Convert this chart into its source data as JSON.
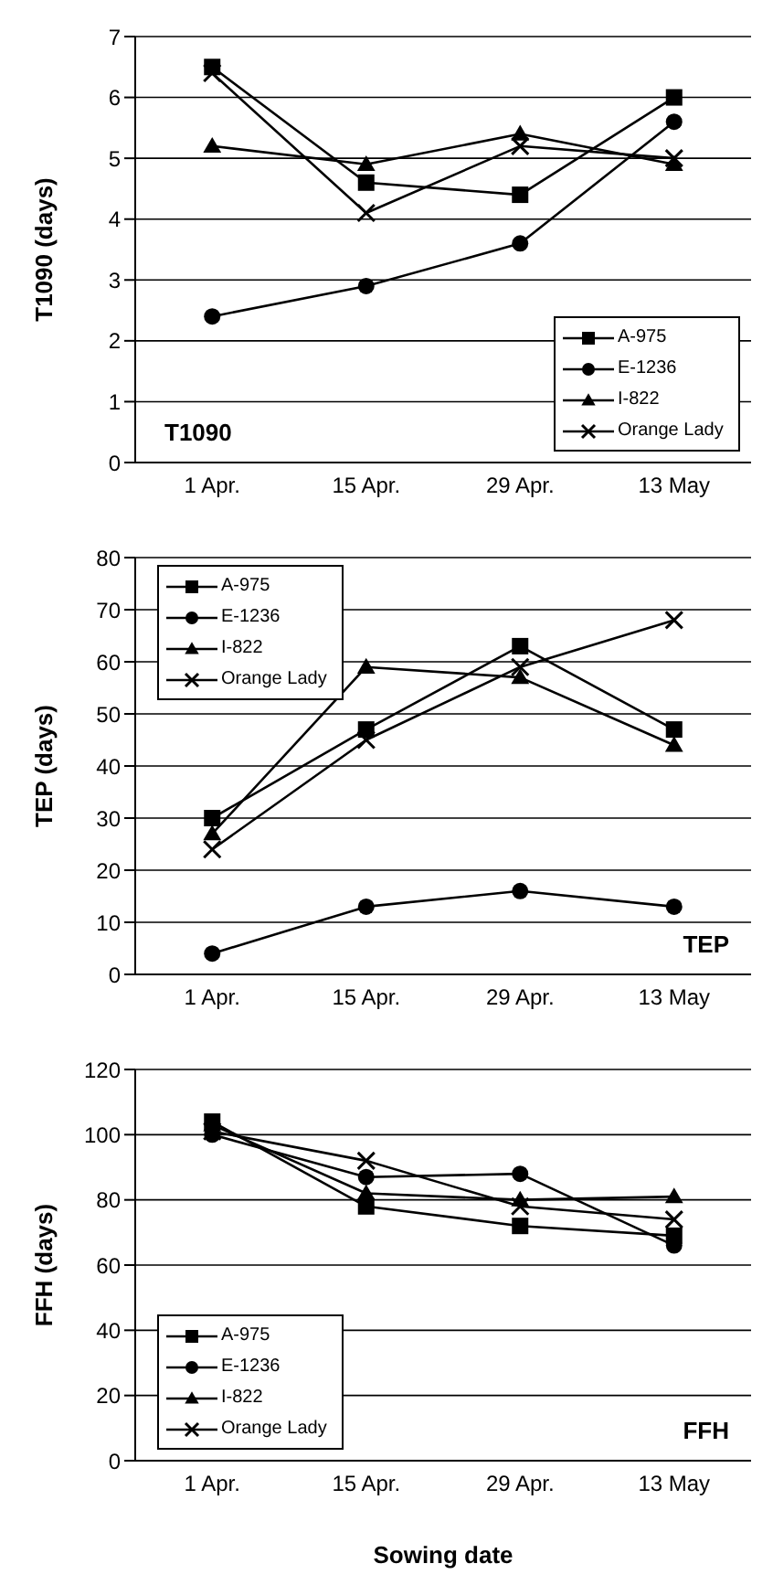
{
  "chart_data": [
    {
      "type": "line",
      "ylabel": "T1090 (days)",
      "categories": [
        "1 Apr.",
        "15 Apr.",
        "29 Apr.",
        "13 May"
      ],
      "ylim": [
        0,
        7
      ],
      "yticks": [
        0,
        1,
        2,
        3,
        4,
        5,
        6,
        7
      ],
      "grid": "y",
      "legend": "bottom right",
      "annotations": [
        "T1090"
      ],
      "series": [
        {
          "name": "A-975",
          "color": "#000000",
          "marker": "square",
          "values": [
            6.5,
            4.6,
            4.4,
            6.0
          ]
        },
        {
          "name": "E-1236",
          "color": "#000000",
          "marker": "circle",
          "values": [
            2.4,
            2.9,
            3.6,
            5.6
          ]
        },
        {
          "name": "I-822",
          "color": "#000000",
          "marker": "triangle",
          "values": [
            5.2,
            4.9,
            5.4,
            4.9
          ]
        },
        {
          "name": "Orange Lady",
          "color": "#000000",
          "marker": "cross",
          "values": [
            6.4,
            4.1,
            5.2,
            5.0
          ]
        }
      ]
    },
    {
      "type": "line",
      "ylabel": "TEP (days)",
      "categories": [
        "1 Apr.",
        "15 Apr.",
        "29 Apr.",
        "13 May"
      ],
      "ylim": [
        0,
        80
      ],
      "yticks": [
        0,
        10,
        20,
        30,
        40,
        50,
        60,
        70,
        80
      ],
      "grid": "y",
      "legend": "top left",
      "annotations": [
        "TEP"
      ],
      "series": [
        {
          "name": "A-975",
          "color": "#000000",
          "marker": "square",
          "values": [
            30,
            47,
            63,
            47
          ]
        },
        {
          "name": "E-1236",
          "color": "#000000",
          "marker": "circle",
          "values": [
            4,
            13,
            16,
            13
          ]
        },
        {
          "name": "I-822",
          "color": "#000000",
          "marker": "triangle",
          "values": [
            27,
            59,
            57,
            44
          ]
        },
        {
          "name": "Orange Lady",
          "color": "#000000",
          "marker": "cross",
          "values": [
            24,
            45,
            59,
            68
          ]
        }
      ]
    },
    {
      "type": "line",
      "ylabel": "FFH (days)",
      "xlabel": "Sowing date",
      "categories": [
        "1 Apr.",
        "15 Apr.",
        "29 Apr.",
        "13 May"
      ],
      "ylim": [
        0,
        120
      ],
      "yticks": [
        0,
        20,
        40,
        60,
        80,
        100,
        120
      ],
      "grid": "y",
      "legend": "bottom left",
      "annotations": [
        "FFH"
      ],
      "series": [
        {
          "name": "A-975",
          "color": "#000000",
          "marker": "square",
          "values": [
            104,
            78,
            72,
            69
          ]
        },
        {
          "name": "E-1236",
          "color": "#000000",
          "marker": "circle",
          "values": [
            100,
            87,
            88,
            66
          ]
        },
        {
          "name": "I-822",
          "color": "#000000",
          "marker": "triangle",
          "values": [
            103,
            82,
            80,
            81
          ]
        },
        {
          "name": "Orange Lady",
          "color": "#000000",
          "marker": "cross",
          "values": [
            101,
            92,
            78,
            74
          ]
        }
      ]
    }
  ]
}
